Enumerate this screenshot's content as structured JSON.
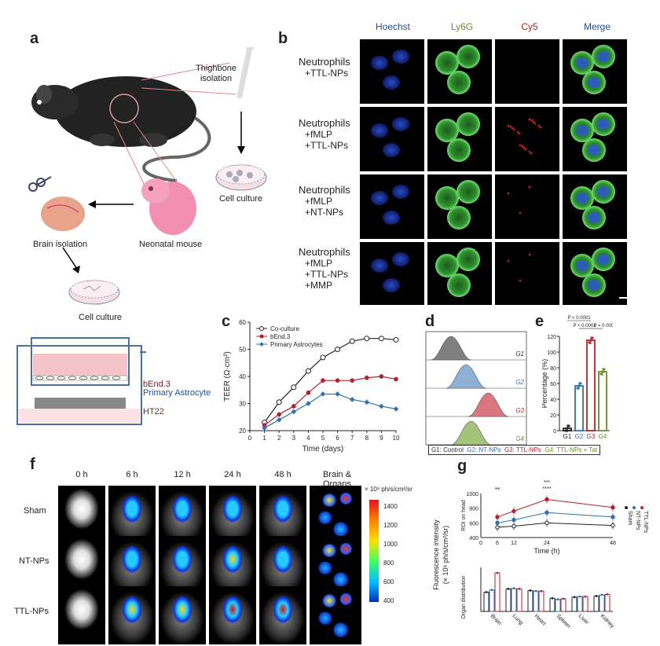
{
  "panels": {
    "a": "a",
    "b": "b",
    "c": "c",
    "d": "d",
    "e": "e",
    "f": "f",
    "g": "g"
  },
  "panel_a": {
    "thighbone": [
      "Thighbone",
      "isolation"
    ],
    "cell_culture_1": "Cell culture",
    "brain_isolation": "Brain isolation",
    "neonatal_mouse": "Neonatal mouse",
    "cell_culture_2": "Cell culture",
    "transwell": {
      "layer1": "bEnd.3",
      "layer2": "Primary Astrocyte",
      "layer3": "HT22"
    }
  },
  "panel_b": {
    "columns": [
      {
        "label": "Hoechst",
        "color": "#1f4e9c"
      },
      {
        "label": "Ly6G",
        "color": "#6b8e23"
      },
      {
        "label": "Cy5",
        "color": "#b22222"
      },
      {
        "label": "Merge",
        "color": "#1f4e9c"
      }
    ],
    "rows": [
      {
        "lines": [
          "Neutrophils",
          "+TTL-NPs"
        ]
      },
      {
        "lines": [
          "Neutrophils",
          "+fMLP",
          "+TTL-NPs"
        ]
      },
      {
        "lines": [
          "Neutrophils",
          "+fMLP",
          "+NT-NPs"
        ]
      },
      {
        "lines": [
          "Neutrophils",
          "+fMLP",
          "+TTL-NPs",
          "+MMP"
        ]
      }
    ]
  },
  "panel_f": {
    "times": [
      "0 h",
      "6 h",
      "12 h",
      "24 h",
      "48 h",
      "Brain & Organs"
    ],
    "groups": [
      "Sham",
      "NT-NPs",
      "TTL-NPs"
    ],
    "colorbar_title": "× 10⁸ ph/s/cm²/sr",
    "colorbar_ticks": [
      "1400",
      "1200",
      "1000",
      "800",
      "600",
      "400"
    ]
  },
  "chart_data": [
    {
      "id": "c",
      "type": "line",
      "xlabel": "Time (days)",
      "ylabel": "TEER (Ω·cm²)",
      "xlim": [
        0,
        10
      ],
      "ylim": [
        20,
        60
      ],
      "xticks": [
        0,
        1,
        2,
        3,
        4,
        5,
        6,
        7,
        8,
        9,
        10
      ],
      "yticks": [
        20,
        30,
        40,
        50,
        60
      ],
      "legend_position": "top-left",
      "series": [
        {
          "name": "Co-culture",
          "color": "#222222",
          "marker": "open-circle",
          "x": [
            1,
            2,
            3,
            4,
            5,
            6,
            7,
            8,
            9,
            10
          ],
          "y": [
            23,
            30.5,
            36,
            42,
            47,
            50,
            53,
            54,
            54,
            53.5
          ]
        },
        {
          "name": "bEnd.3",
          "color": "#b22230",
          "marker": "filled-circle",
          "x": [
            1,
            2,
            3,
            4,
            5,
            6,
            7,
            8,
            9,
            10
          ],
          "y": [
            22,
            26,
            29,
            34,
            38.5,
            38.5,
            38.5,
            39.5,
            40,
            39
          ]
        },
        {
          "name": "Primary Astrocytes",
          "color": "#2f6fb5",
          "marker": "diamond",
          "x": [
            1,
            2,
            3,
            4,
            5,
            6,
            7,
            8,
            9,
            10
          ],
          "y": [
            21,
            24,
            27,
            30,
            33.5,
            33.5,
            31.5,
            30.5,
            29,
            28
          ]
        }
      ]
    },
    {
      "id": "d",
      "type": "area",
      "legend_text": "G1: Control   G2: NT-NPs   G3: TTL-NPs   G4: TTL-NPs + Tat",
      "legend_items": [
        {
          "label": "G1: Control",
          "color": "#333333"
        },
        {
          "label": "G2: NT-NPs",
          "color": "#2f6fb5"
        },
        {
          "label": "G3: TTL-NPs",
          "color": "#b22230"
        },
        {
          "label": "G4: TTL-NPs + Tat",
          "color": "#6b8e23"
        }
      ],
      "series": [
        {
          "name": "G1",
          "color": "#808080",
          "peak": 0.25
        },
        {
          "name": "G2",
          "color": "#8fb0d6",
          "peak": 0.4
        },
        {
          "name": "G3",
          "color": "#d9767e",
          "peak": 0.62
        },
        {
          "name": "G4",
          "color": "#a3c27a",
          "peak": 0.45
        }
      ]
    },
    {
      "id": "e",
      "type": "bar",
      "ylabel": "Percentage (%)",
      "categories": [
        "G1",
        "G2",
        "G3",
        "G4"
      ],
      "values": [
        3,
        57,
        115,
        75
      ],
      "colors": [
        "#222222",
        "#2f6fb5",
        "#b22230",
        "#6b8e23"
      ],
      "ylim": [
        0,
        120
      ],
      "yticks": [
        0,
        20,
        40,
        60,
        80,
        100,
        120
      ],
      "annotations": [
        "P < 0.0001",
        "P < 0.0001",
        "P = 0.0005"
      ]
    },
    {
      "id": "g_top",
      "type": "line",
      "xlabel": "Time (h)",
      "ylabel": "ROI on head",
      "shared_ylabel": [
        "Fluorescence intensity",
        "(× 10⁸ ph/s/cm²/sr)"
      ],
      "xticks": [
        0,
        6,
        12,
        24,
        48
      ],
      "yticks": [
        400,
        600,
        800,
        1000
      ],
      "ylim": [
        400,
        1000
      ],
      "annotations": [
        "**",
        "***",
        "****"
      ],
      "legend_labels": [
        "Sham",
        "NT-NPs",
        "TTL-NPs"
      ],
      "series": [
        {
          "name": "Sham",
          "color": "#222222",
          "x": [
            6,
            12,
            24,
            48
          ],
          "y": [
            540,
            555,
            600,
            565
          ]
        },
        {
          "name": "NT-NPs",
          "color": "#2f6fb5",
          "x": [
            6,
            12,
            24,
            48
          ],
          "y": [
            600,
            640,
            740,
            680
          ]
        },
        {
          "name": "TTL-NPs",
          "color": "#b22230",
          "x": [
            6,
            12,
            24,
            48
          ],
          "y": [
            680,
            760,
            920,
            810
          ]
        }
      ]
    },
    {
      "id": "g_bottom",
      "type": "bar",
      "ylabel": "Organ distribution",
      "categories": [
        "Brain",
        "Lung",
        "Heart",
        "Spleen",
        "Liver",
        "Kidney"
      ],
      "series": [
        {
          "name": "Sham",
          "color": "#222222",
          "values": [
            700,
            820,
            760,
            480,
            520,
            560
          ]
        },
        {
          "name": "NT-NPs",
          "color": "#2f6fb5",
          "values": [
            780,
            840,
            740,
            440,
            540,
            600
          ]
        },
        {
          "name": "TTL-NPs",
          "color": "#b22230",
          "values": [
            1400,
            820,
            740,
            460,
            540,
            620
          ]
        }
      ],
      "ylim": [
        0,
        1600
      ]
    }
  ]
}
